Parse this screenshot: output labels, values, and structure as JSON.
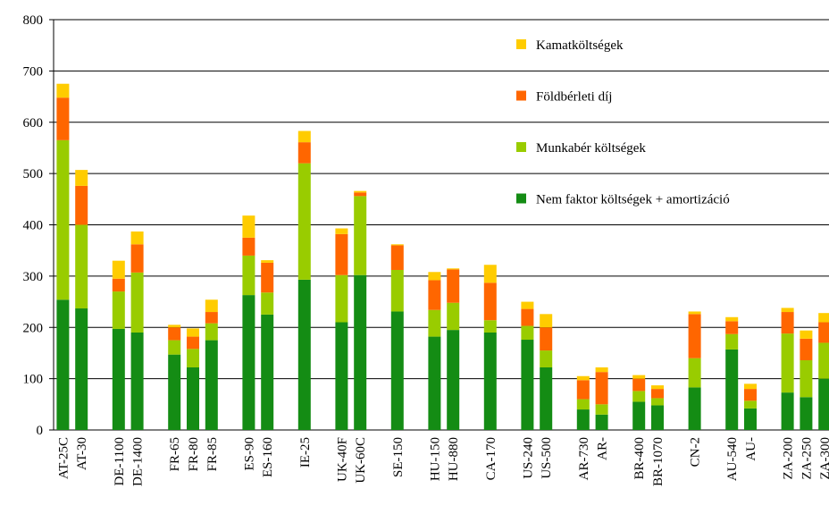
{
  "chart_data": {
    "type": "stacked_bar",
    "categories": [
      "AT-25C",
      "AT-30",
      null,
      "DE-1100",
      "DE-1400",
      null,
      "FR-65",
      "FR-80",
      "FR-85",
      null,
      "ES-90",
      "ES-160",
      null,
      "IE-25",
      null,
      "UK-40F",
      "UK-60C",
      null,
      "SE-150",
      null,
      "HU-150",
      "HU-880",
      null,
      "CA-170",
      null,
      "US-240",
      "US-500",
      null,
      "AR-730",
      "AR-",
      null,
      "BR-400",
      "BR-1070",
      null,
      "CN-2",
      null,
      "AU-540",
      "AU-",
      null,
      "ZA-200",
      "ZA-250",
      "ZA-300"
    ],
    "series": [
      {
        "name": "Nem faktor költségek + amortizáció",
        "color": "#148c14",
        "values": [
          254,
          237,
          null,
          197,
          190,
          null,
          147,
          122,
          175,
          null,
          263,
          225,
          null,
          293,
          null,
          210,
          302,
          null,
          231,
          null,
          182,
          195,
          null,
          190,
          null,
          176,
          122,
          null,
          40,
          30,
          null,
          55,
          48,
          null,
          83,
          null,
          157,
          42,
          null,
          73,
          64,
          100
        ]
      },
      {
        "name": "Munkabér költségek",
        "color": "#99cc00",
        "values": [
          311,
          163,
          null,
          73,
          117,
          null,
          28,
          36,
          33,
          null,
          77,
          43,
          null,
          227,
          null,
          92,
          154,
          null,
          81,
          null,
          52,
          53,
          null,
          24,
          null,
          27,
          33,
          null,
          20,
          20,
          null,
          21,
          14,
          null,
          57,
          null,
          30,
          15,
          null,
          115,
          72,
          70
        ]
      },
      {
        "name": "Földbérleti díj",
        "color": "#ff6600",
        "values": [
          83,
          76,
          null,
          25,
          55,
          null,
          25,
          24,
          22,
          null,
          35,
          58,
          null,
          41,
          null,
          80,
          7,
          null,
          48,
          null,
          58,
          65,
          null,
          73,
          null,
          33,
          45,
          null,
          37,
          63,
          null,
          24,
          18,
          null,
          86,
          null,
          25,
          23,
          null,
          42,
          42,
          40
        ]
      },
      {
        "name": "Kamatköltségek",
        "color": "#ffcc00",
        "values": [
          27,
          31,
          null,
          35,
          25,
          null,
          5,
          16,
          24,
          null,
          43,
          5,
          null,
          22,
          null,
          11,
          3,
          null,
          2,
          null,
          16,
          2,
          null,
          35,
          null,
          14,
          26,
          null,
          8,
          9,
          null,
          7,
          7,
          null,
          5,
          null,
          8,
          10,
          null,
          8,
          16,
          18
        ]
      }
    ],
    "ylim": [
      0,
      800
    ],
    "yticks": [
      0,
      100,
      200,
      300,
      400,
      500,
      600,
      700,
      800
    ],
    "grid": true,
    "legend": "upper right"
  }
}
